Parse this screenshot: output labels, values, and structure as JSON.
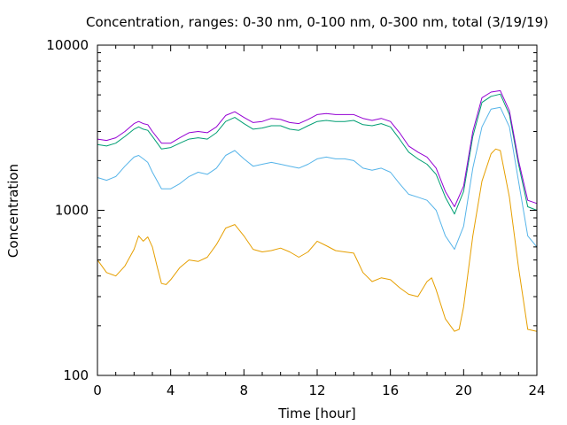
{
  "chart_data": {
    "type": "line",
    "title": "Concentration, ranges: 0-30 nm, 0-100 nm, 0-300 nm, total (3/19/19)",
    "xlabel": "Time [hour]",
    "ylabel": "Concentration",
    "xlim": [
      0,
      24
    ],
    "ylim": [
      100,
      10000
    ],
    "yscale": "log",
    "grid": false,
    "xticks": [
      "0",
      "4",
      "8",
      "12",
      "16",
      "20",
      "24"
    ],
    "yticks": [
      "100",
      "1000",
      "10000"
    ],
    "series": [
      {
        "color": "#e69f00",
        "x": [
          0,
          0.5,
          1,
          1.5,
          2,
          2.25,
          2.5,
          2.75,
          3,
          3.25,
          3.5,
          3.75,
          4,
          4.5,
          5,
          5.5,
          6,
          6.5,
          7,
          7.5,
          8,
          8.5,
          9,
          9.5,
          10,
          10.5,
          11,
          11.5,
          12,
          12.5,
          13,
          13.5,
          14,
          14.5,
          15,
          15.5,
          16,
          16.5,
          17,
          17.5,
          18,
          18.25,
          18.5,
          19,
          19.5,
          19.75,
          20,
          20.5,
          21,
          21.5,
          21.75,
          22,
          22.5,
          23,
          23.5,
          24
        ],
        "y": [
          500,
          420,
          400,
          460,
          580,
          700,
          650,
          690,
          600,
          460,
          360,
          355,
          380,
          450,
          500,
          490,
          520,
          620,
          780,
          820,
          700,
          580,
          560,
          570,
          590,
          560,
          520,
          560,
          650,
          610,
          570,
          560,
          550,
          420,
          370,
          390,
          380,
          340,
          310,
          300,
          370,
          390,
          330,
          220,
          185,
          190,
          260,
          700,
          1500,
          2200,
          2350,
          2300,
          1200,
          450,
          190,
          185
        ]
      },
      {
        "color": "#56b4e9",
        "x": [
          0,
          0.5,
          1,
          1.5,
          2,
          2.25,
          2.5,
          2.75,
          3,
          3.5,
          4,
          4.5,
          5,
          5.5,
          6,
          6.5,
          7,
          7.5,
          8,
          8.5,
          9,
          9.5,
          10,
          10.5,
          11,
          11.5,
          12,
          12.5,
          13,
          13.5,
          14,
          14.5,
          15,
          15.5,
          16,
          16.5,
          17,
          17.5,
          18,
          18.5,
          19,
          19.5,
          20,
          20.5,
          21,
          21.5,
          22,
          22.5,
          23,
          23.5,
          24
        ],
        "y": [
          1580,
          1520,
          1600,
          1850,
          2100,
          2150,
          2050,
          1950,
          1700,
          1350,
          1350,
          1450,
          1600,
          1700,
          1650,
          1800,
          2150,
          2300,
          2050,
          1850,
          1900,
          1950,
          1900,
          1850,
          1800,
          1900,
          2050,
          2100,
          2050,
          2050,
          2000,
          1800,
          1750,
          1800,
          1700,
          1450,
          1250,
          1200,
          1150,
          1000,
          700,
          580,
          800,
          1800,
          3200,
          4100,
          4200,
          3200,
          1500,
          700,
          600
        ]
      },
      {
        "color": "#009e73",
        "x": [
          0,
          0.5,
          1,
          1.5,
          2,
          2.25,
          2.5,
          2.75,
          3,
          3.5,
          4,
          4.5,
          5,
          5.5,
          6,
          6.5,
          7,
          7.5,
          8,
          8.5,
          9,
          9.5,
          10,
          10.5,
          11,
          11.5,
          12,
          12.5,
          13,
          13.5,
          14,
          14.5,
          15,
          15.5,
          16,
          16.5,
          17,
          17.5,
          18,
          18.5,
          19,
          19.5,
          20,
          20.5,
          21,
          21.5,
          22,
          22.5,
          23,
          23.5,
          24
        ],
        "y": [
          2500,
          2450,
          2550,
          2800,
          3100,
          3200,
          3100,
          3050,
          2800,
          2350,
          2400,
          2550,
          2700,
          2750,
          2700,
          2950,
          3450,
          3650,
          3350,
          3100,
          3150,
          3250,
          3250,
          3100,
          3050,
          3250,
          3450,
          3500,
          3450,
          3450,
          3500,
          3300,
          3250,
          3350,
          3200,
          2700,
          2250,
          2050,
          1900,
          1650,
          1200,
          950,
          1300,
          2800,
          4500,
          4900,
          5050,
          3800,
          1900,
          1050,
          1000
        ]
      },
      {
        "color": "#9400d3",
        "x": [
          0,
          0.5,
          1,
          1.5,
          2,
          2.25,
          2.5,
          2.75,
          3,
          3.5,
          4,
          4.5,
          5,
          5.5,
          6,
          6.5,
          7,
          7.5,
          8,
          8.5,
          9,
          9.5,
          10,
          10.5,
          11,
          11.5,
          12,
          12.5,
          13,
          13.5,
          14,
          14.5,
          15,
          15.5,
          16,
          16.5,
          17,
          17.5,
          18,
          18.5,
          19,
          19.5,
          20,
          20.5,
          21,
          21.5,
          22,
          22.5,
          23,
          23.5,
          24
        ],
        "y": [
          2700,
          2650,
          2750,
          3000,
          3350,
          3450,
          3350,
          3300,
          3000,
          2550,
          2550,
          2750,
          2950,
          3000,
          2950,
          3200,
          3750,
          3950,
          3650,
          3400,
          3450,
          3600,
          3550,
          3400,
          3350,
          3550,
          3800,
          3850,
          3800,
          3800,
          3800,
          3600,
          3500,
          3600,
          3450,
          2950,
          2450,
          2250,
          2100,
          1800,
          1300,
          1050,
          1400,
          3000,
          4800,
          5200,
          5300,
          4000,
          2000,
          1150,
          1100
        ]
      }
    ]
  }
}
